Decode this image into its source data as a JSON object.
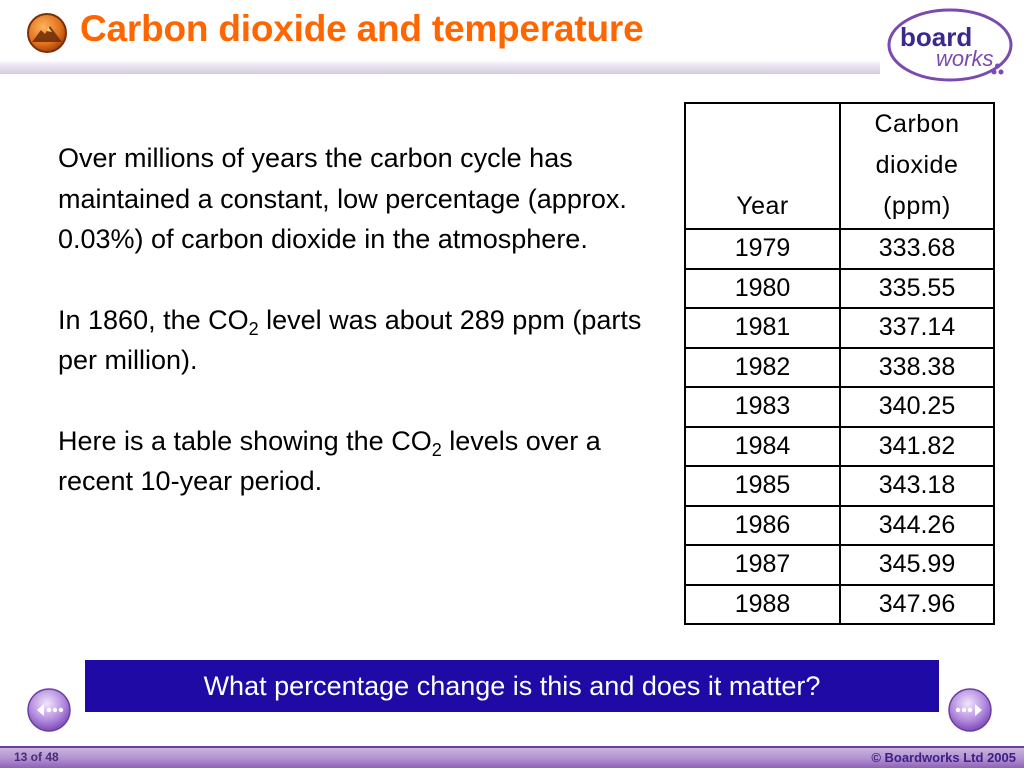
{
  "slide": {
    "title": "Carbon dioxide and temperature",
    "logo": {
      "word1": "board",
      "word2": "works"
    },
    "paragraphs": {
      "p1": "Over millions of years the carbon cycle has maintained a constant, low percentage (approx. 0.03%) of carbon dioxide in the atmosphere.",
      "p2_pre": "In 1860, the CO",
      "p2_sub": "2",
      "p2_post": " level was about 289 ppm (parts per million).",
      "p3_pre": "Here is a table showing the CO",
      "p3_sub": "2",
      "p3_post": " levels over a recent 10-year period."
    },
    "table": {
      "header_year": "Year",
      "header_co2_line1": "Carbon",
      "header_co2_line2": "dioxide",
      "header_co2_line3": "(ppm)",
      "rows": [
        {
          "year": "1979",
          "co2": "333.68"
        },
        {
          "year": "1980",
          "co2": "335.55"
        },
        {
          "year": "1981",
          "co2": "337.14"
        },
        {
          "year": "1982",
          "co2": "338.38"
        },
        {
          "year": "1983",
          "co2": "340.25"
        },
        {
          "year": "1984",
          "co2": "341.82"
        },
        {
          "year": "1985",
          "co2": "343.18"
        },
        {
          "year": "1986",
          "co2": "344.26"
        },
        {
          "year": "1987",
          "co2": "345.99"
        },
        {
          "year": "1988",
          "co2": "347.96"
        }
      ]
    },
    "question": "What percentage change is this and does it matter?",
    "page_indicator": "13 of 48",
    "copyright": "© Boardworks Ltd 2005"
  },
  "icons": {
    "title_icon": "volcano-icon",
    "prev": "previous-arrow-icon",
    "next": "next-arrow-icon"
  },
  "colors": {
    "title": "#ff6600",
    "question_bar": "#1f0aa6",
    "accent_purple": "#6b3c98"
  }
}
